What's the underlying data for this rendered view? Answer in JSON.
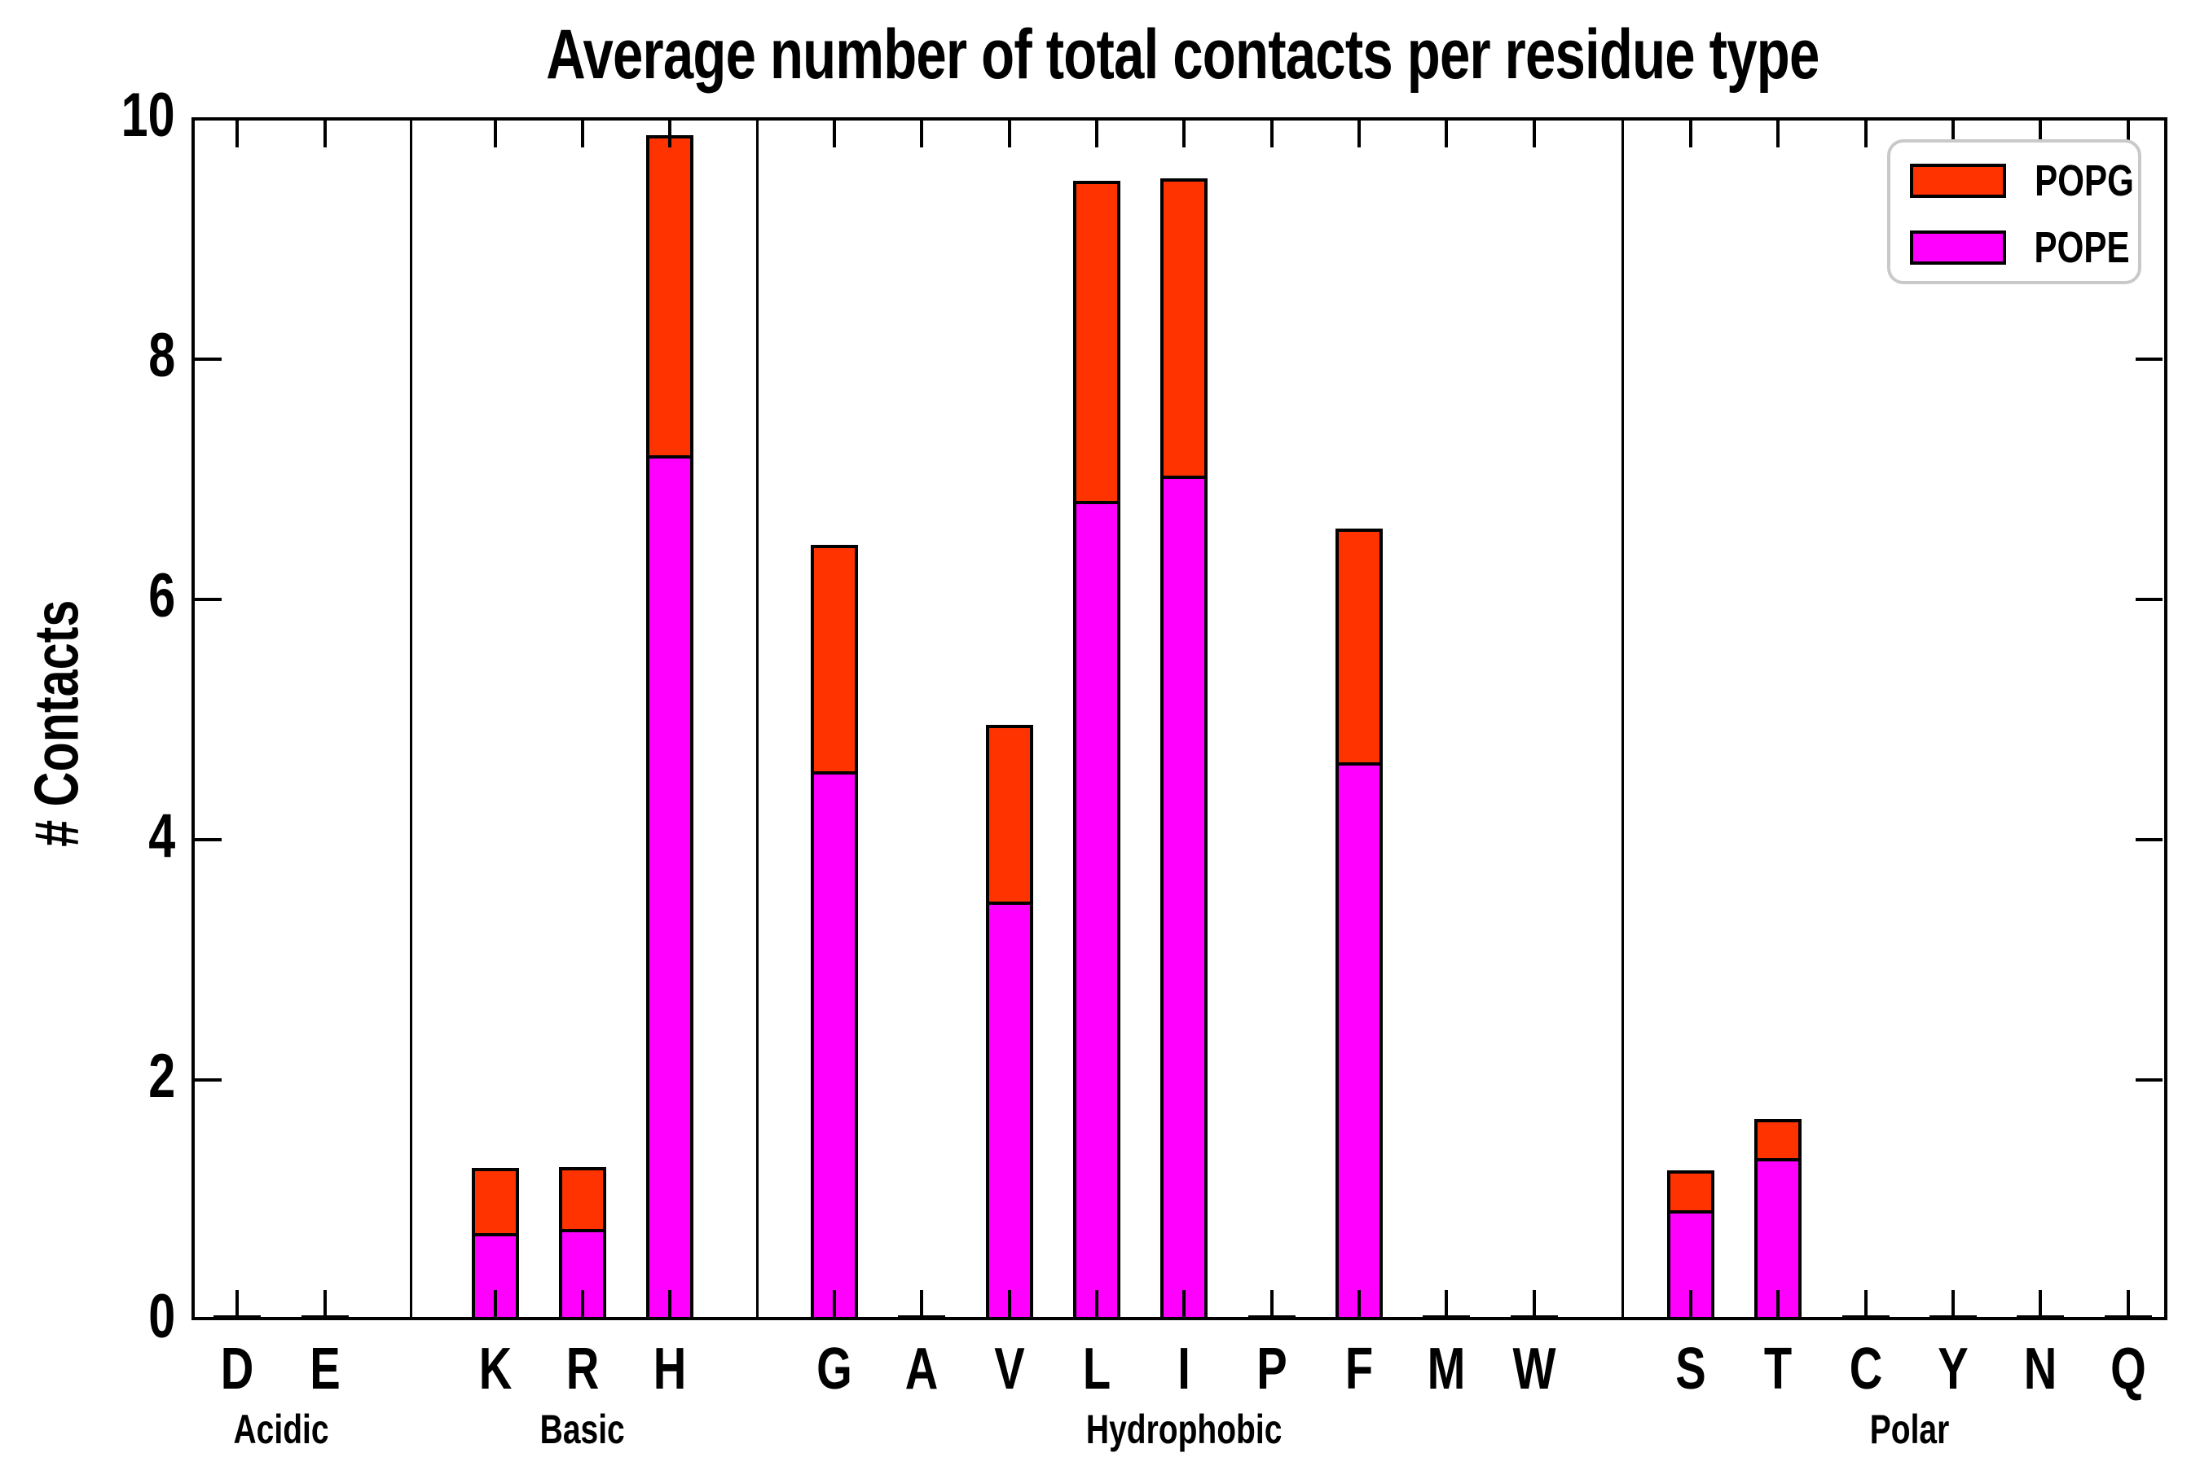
{
  "title": "Average number of total contacts per residue type",
  "y_axis_label": "# Contacts",
  "legend": {
    "items": [
      {
        "label": "POPG",
        "color": "#ff3300"
      },
      {
        "label": "POPE",
        "color": "#ff00ff"
      }
    ],
    "position": "upper right"
  },
  "colors": {
    "popg": "#ff3300",
    "pope": "#ff00ff",
    "axis": "#000000",
    "legend_border": "#c9c9c9",
    "background": "#ffffff"
  },
  "chart_data": {
    "type": "bar",
    "stacked": true,
    "title": "Average number of total contacts per residue type",
    "xlabel": "",
    "ylabel": "# Contacts",
    "ylim": [
      0,
      10
    ],
    "yticks": [
      0,
      2,
      4,
      6,
      8,
      10
    ],
    "grid": false,
    "legend_position": "upper right",
    "categories": [
      "D",
      "E",
      "K",
      "R",
      "H",
      "G",
      "A",
      "V",
      "L",
      "I",
      "P",
      "F",
      "M",
      "W",
      "S",
      "T",
      "C",
      "Y",
      "N",
      "Q"
    ],
    "groups": [
      {
        "label": "Acidic",
        "residues": [
          "D",
          "E"
        ]
      },
      {
        "label": "Basic",
        "residues": [
          "K",
          "R",
          "H"
        ]
      },
      {
        "label": "Hydrophobic",
        "residues": [
          "G",
          "A",
          "V",
          "L",
          "I",
          "P",
          "F",
          "M",
          "W"
        ]
      },
      {
        "label": "Polar",
        "residues": [
          "S",
          "T",
          "C",
          "Y",
          "N",
          "Q"
        ]
      }
    ],
    "series": [
      {
        "name": "POPE",
        "color": "#ff00ff",
        "values": [
          0,
          0,
          0.7,
          0.73,
          7.17,
          4.54,
          0,
          3.46,
          6.79,
          7.0,
          0,
          4.62,
          0,
          0,
          0.89,
          1.32,
          0,
          0,
          0,
          0
        ]
      },
      {
        "name": "POPG",
        "color": "#ff3300",
        "values": [
          0,
          0,
          0.57,
          0.54,
          2.69,
          1.91,
          0,
          1.5,
          2.69,
          2.5,
          0,
          1.97,
          0,
          0,
          0.36,
          0.35,
          0,
          0,
          0,
          0
        ]
      }
    ],
    "totals": [
      0,
      0,
      1.27,
      1.27,
      9.86,
      6.45,
      0,
      4.96,
      9.48,
      9.5,
      0,
      6.59,
      0,
      0,
      1.25,
      1.67,
      0,
      0,
      0,
      0
    ]
  }
}
